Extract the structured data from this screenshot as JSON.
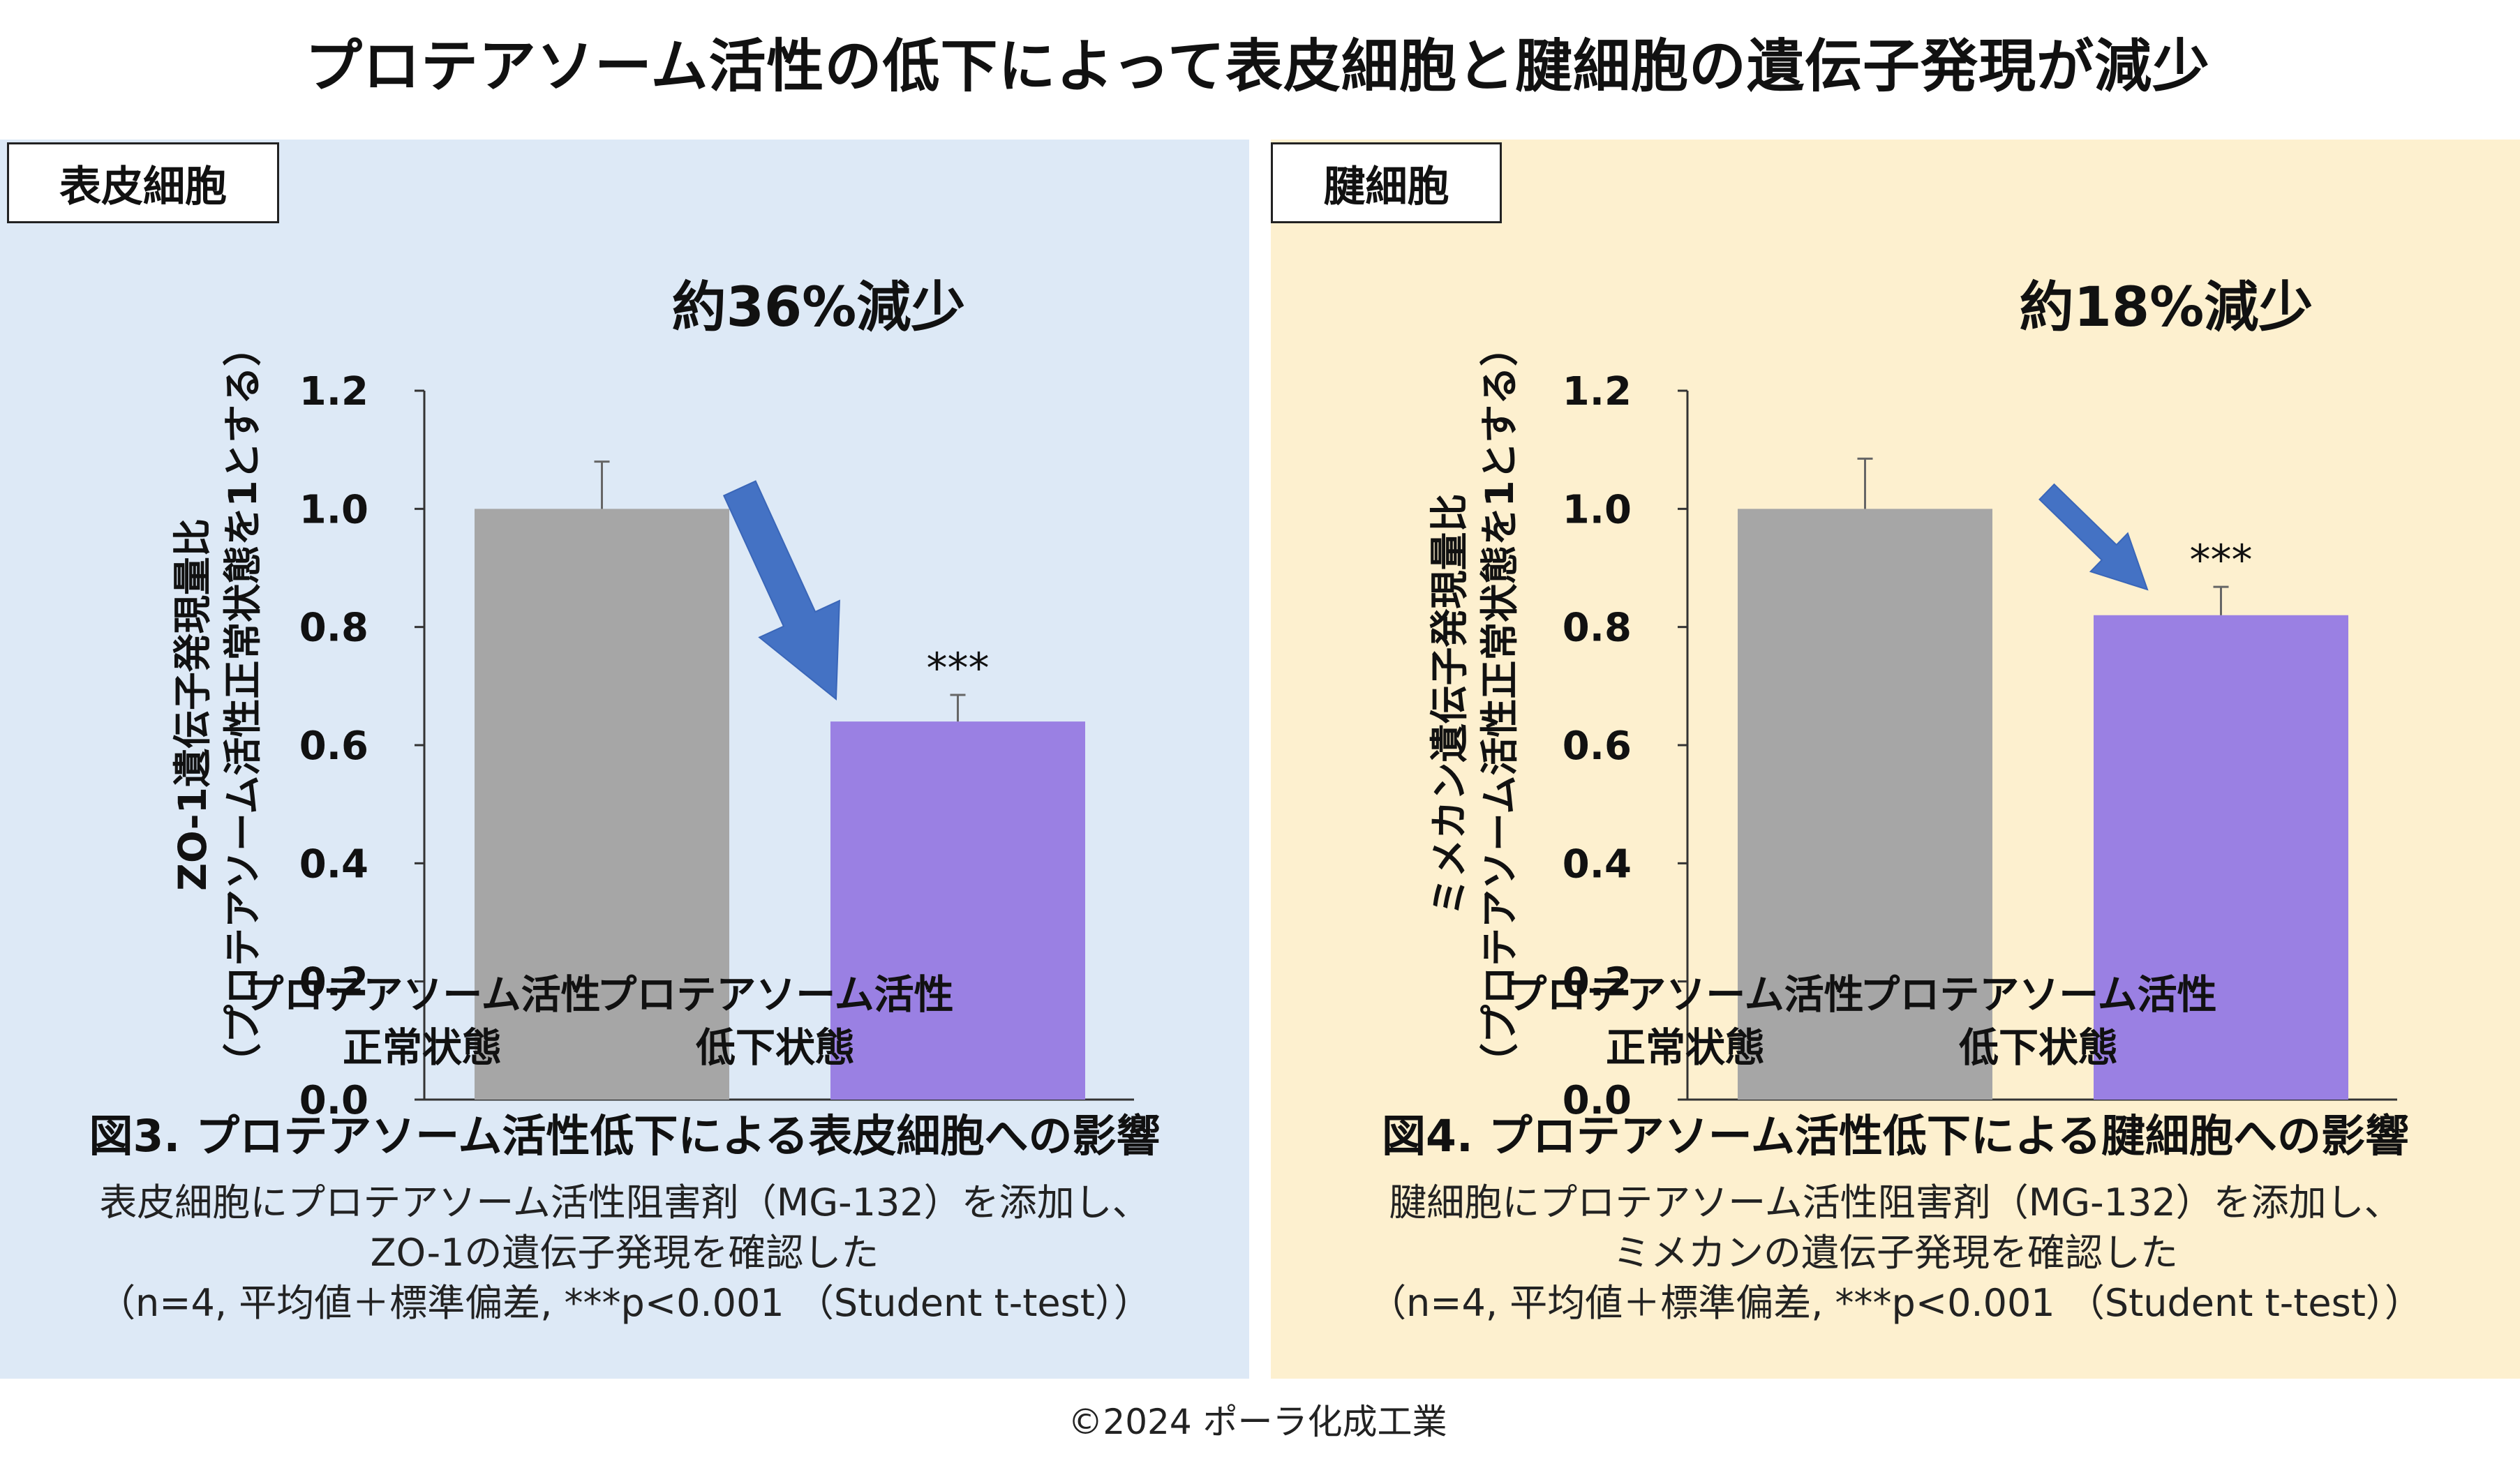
{
  "title": "プロテアソーム活性の低下によって表皮細胞と腱細胞の遺伝子発現が減少",
  "copyright": "©2024 ポーラ化成工業",
  "colors": {
    "bar_normal": "#a6a6a6",
    "bar_low": "#9a80e3",
    "arrow": "#4472c4",
    "left_bg": "#dde9f6",
    "right_bg": "#fdf0cf"
  },
  "chart_data": [
    {
      "type": "bar",
      "panel_label": "表皮細胞",
      "ylabel": [
        "ZO-1遺伝子発現量比",
        "（プロテアソーム活性正常状態を1とする）"
      ],
      "ylim": [
        0,
        1.2
      ],
      "yticks": [
        "0.0",
        "0.2",
        "0.4",
        "0.6",
        "0.8",
        "1.0",
        "1.2"
      ],
      "categories": [
        [
          "プロテアソーム活性",
          "正常状態"
        ],
        [
          "プロテアソーム活性",
          "低下状態"
        ]
      ],
      "values": [
        1.0,
        0.64
      ],
      "error": [
        0.08,
        0.045
      ],
      "significance": [
        "",
        "***"
      ],
      "annotation": "約36%減少",
      "figure_title": "図3. プロテアソーム活性低下による表皮細胞への影響",
      "caption": [
        "表皮細胞にプロテアソーム活性阻害剤（MG-132）を添加し、",
        "ZO-1の遺伝子発現を確認した",
        "（n=4, 平均値＋標準偏差, ***p<0.001 （Student t-test））"
      ]
    },
    {
      "type": "bar",
      "panel_label": "腱細胞",
      "ylabel": [
        "ミメカン遺伝子発現量比",
        "（プロテアソーム活性正常状態を1とする）"
      ],
      "ylim": [
        0,
        1.2
      ],
      "yticks": [
        "0.0",
        "0.2",
        "0.4",
        "0.6",
        "0.8",
        "1.0",
        "1.2"
      ],
      "categories": [
        [
          "プロテアソーム活性",
          "正常状態"
        ],
        [
          "プロテアソーム活性",
          "低下状態"
        ]
      ],
      "values": [
        1.0,
        0.82
      ],
      "error": [
        0.085,
        0.048
      ],
      "significance": [
        "",
        "***"
      ],
      "annotation": "約18%減少",
      "figure_title": "図4. プロテアソーム活性低下による腱細胞への影響",
      "caption": [
        "腱細胞にプロテアソーム活性阻害剤（MG-132）を添加し、",
        "ミメカンの遺伝子発現を確認した",
        "（n=4, 平均値＋標準偏差, ***p<0.001 （Student t-test））"
      ]
    }
  ]
}
